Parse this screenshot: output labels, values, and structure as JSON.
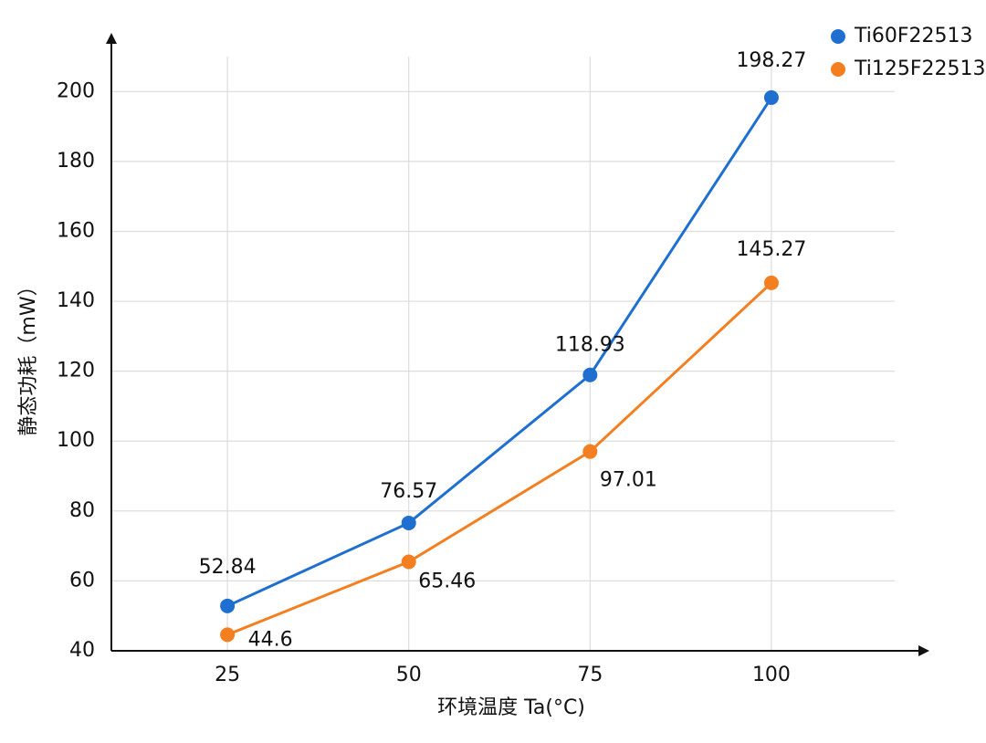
{
  "chart_data": {
    "type": "line",
    "xlabel": "环境温度 Ta(°C)",
    "ylabel": "静态功耗（mW）",
    "x": [
      25,
      50,
      75,
      100
    ],
    "xlim": [
      9,
      117
    ],
    "xticks": [
      25,
      50,
      75,
      100
    ],
    "ylim": [
      40,
      210
    ],
    "yticks": [
      40,
      60,
      80,
      100,
      120,
      140,
      160,
      180,
      200
    ],
    "grid": true,
    "legend": "top-right",
    "series": [
      {
        "name": "Ti60F22513",
        "color": "#1f6fd1",
        "values": [
          52.84,
          76.57,
          118.93,
          198.27
        ]
      },
      {
        "name": "Ti125F22513",
        "color": "#f47f20",
        "values": [
          44.6,
          65.46,
          97.01,
          145.27
        ]
      }
    ]
  }
}
